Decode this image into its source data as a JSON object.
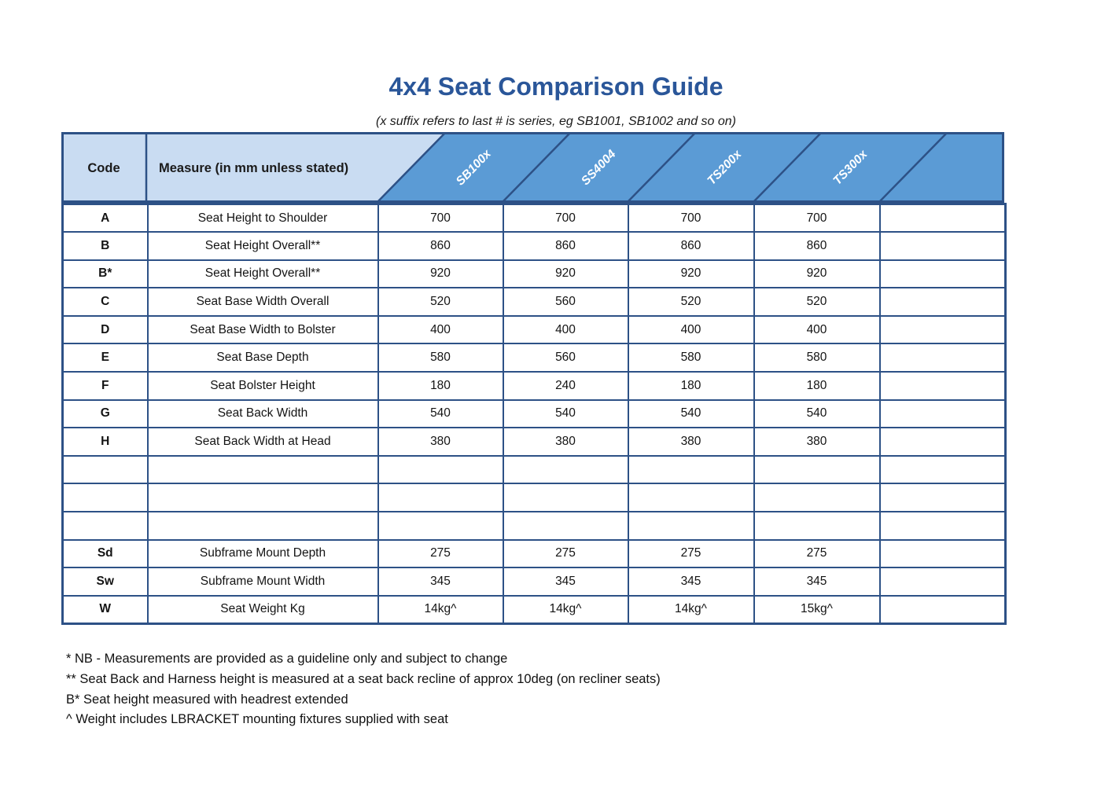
{
  "page": {
    "title": "4x4 Seat Comparison Guide",
    "subtitle": "(x suffix refers to last # is series, eg SB1001, SB1002 and so on)"
  },
  "table": {
    "code_header": "Code",
    "measure_header": "Measure (in mm unless stated)",
    "product_columns": [
      "SB100x",
      "SS4004",
      "TS200x",
      "TS300x"
    ],
    "rows": [
      {
        "code": "A",
        "measure": "Seat Height to Shoulder",
        "values": [
          "700",
          "700",
          "700",
          "700"
        ]
      },
      {
        "code": "B",
        "measure": "Seat Height Overall**",
        "values": [
          "860",
          "860",
          "860",
          "860"
        ]
      },
      {
        "code": "B*",
        "measure": "Seat Height Overall**",
        "values": [
          "920",
          "920",
          "920",
          "920"
        ]
      },
      {
        "code": "C",
        "measure": "Seat Base Width Overall",
        "values": [
          "520",
          "560",
          "520",
          "520"
        ]
      },
      {
        "code": "D",
        "measure": "Seat Base Width to Bolster",
        "values": [
          "400",
          "400",
          "400",
          "400"
        ]
      },
      {
        "code": "E",
        "measure": "Seat Base Depth",
        "values": [
          "580",
          "560",
          "580",
          "580"
        ]
      },
      {
        "code": "F",
        "measure": "Seat Bolster Height",
        "values": [
          "180",
          "240",
          "180",
          "180"
        ]
      },
      {
        "code": "G",
        "measure": "Seat Back Width",
        "values": [
          "540",
          "540",
          "540",
          "540"
        ]
      },
      {
        "code": "H",
        "measure": "Seat Back Width at Head",
        "values": [
          "380",
          "380",
          "380",
          "380"
        ]
      },
      {
        "code": "",
        "measure": "",
        "values": [
          "",
          "",
          "",
          ""
        ]
      },
      {
        "code": "",
        "measure": "",
        "values": [
          "",
          "",
          "",
          ""
        ]
      },
      {
        "code": "",
        "measure": "",
        "values": [
          "",
          "",
          "",
          ""
        ]
      },
      {
        "code": "Sd",
        "measure": "Subframe Mount Depth",
        "values": [
          "275",
          "275",
          "275",
          "275"
        ]
      },
      {
        "code": "Sw",
        "measure": "Subframe Mount Width",
        "values": [
          "345",
          "345",
          "345",
          "345"
        ]
      },
      {
        "code": "W",
        "measure": "Seat Weight Kg",
        "values": [
          "14kg^",
          "14kg^",
          "14kg^",
          "15kg^"
        ]
      }
    ]
  },
  "footnotes": [
    "* NB - Measurements are provided as a guideline only and subject to change",
    "** Seat Back and Harness height is measured at a seat back recline of approx 10deg (on recliner seats)",
    "B* Seat height measured with headrest extended",
    "^ Weight includes LBRACKET mounting fixtures supplied with seat"
  ],
  "colors": {
    "title_blue": "#2a5699",
    "header_light_blue": "#c9dcf2",
    "header_medium_blue": "#5b9bd5",
    "grid_border_blue": "#2d5186",
    "header_label_text": "#ffffff"
  }
}
